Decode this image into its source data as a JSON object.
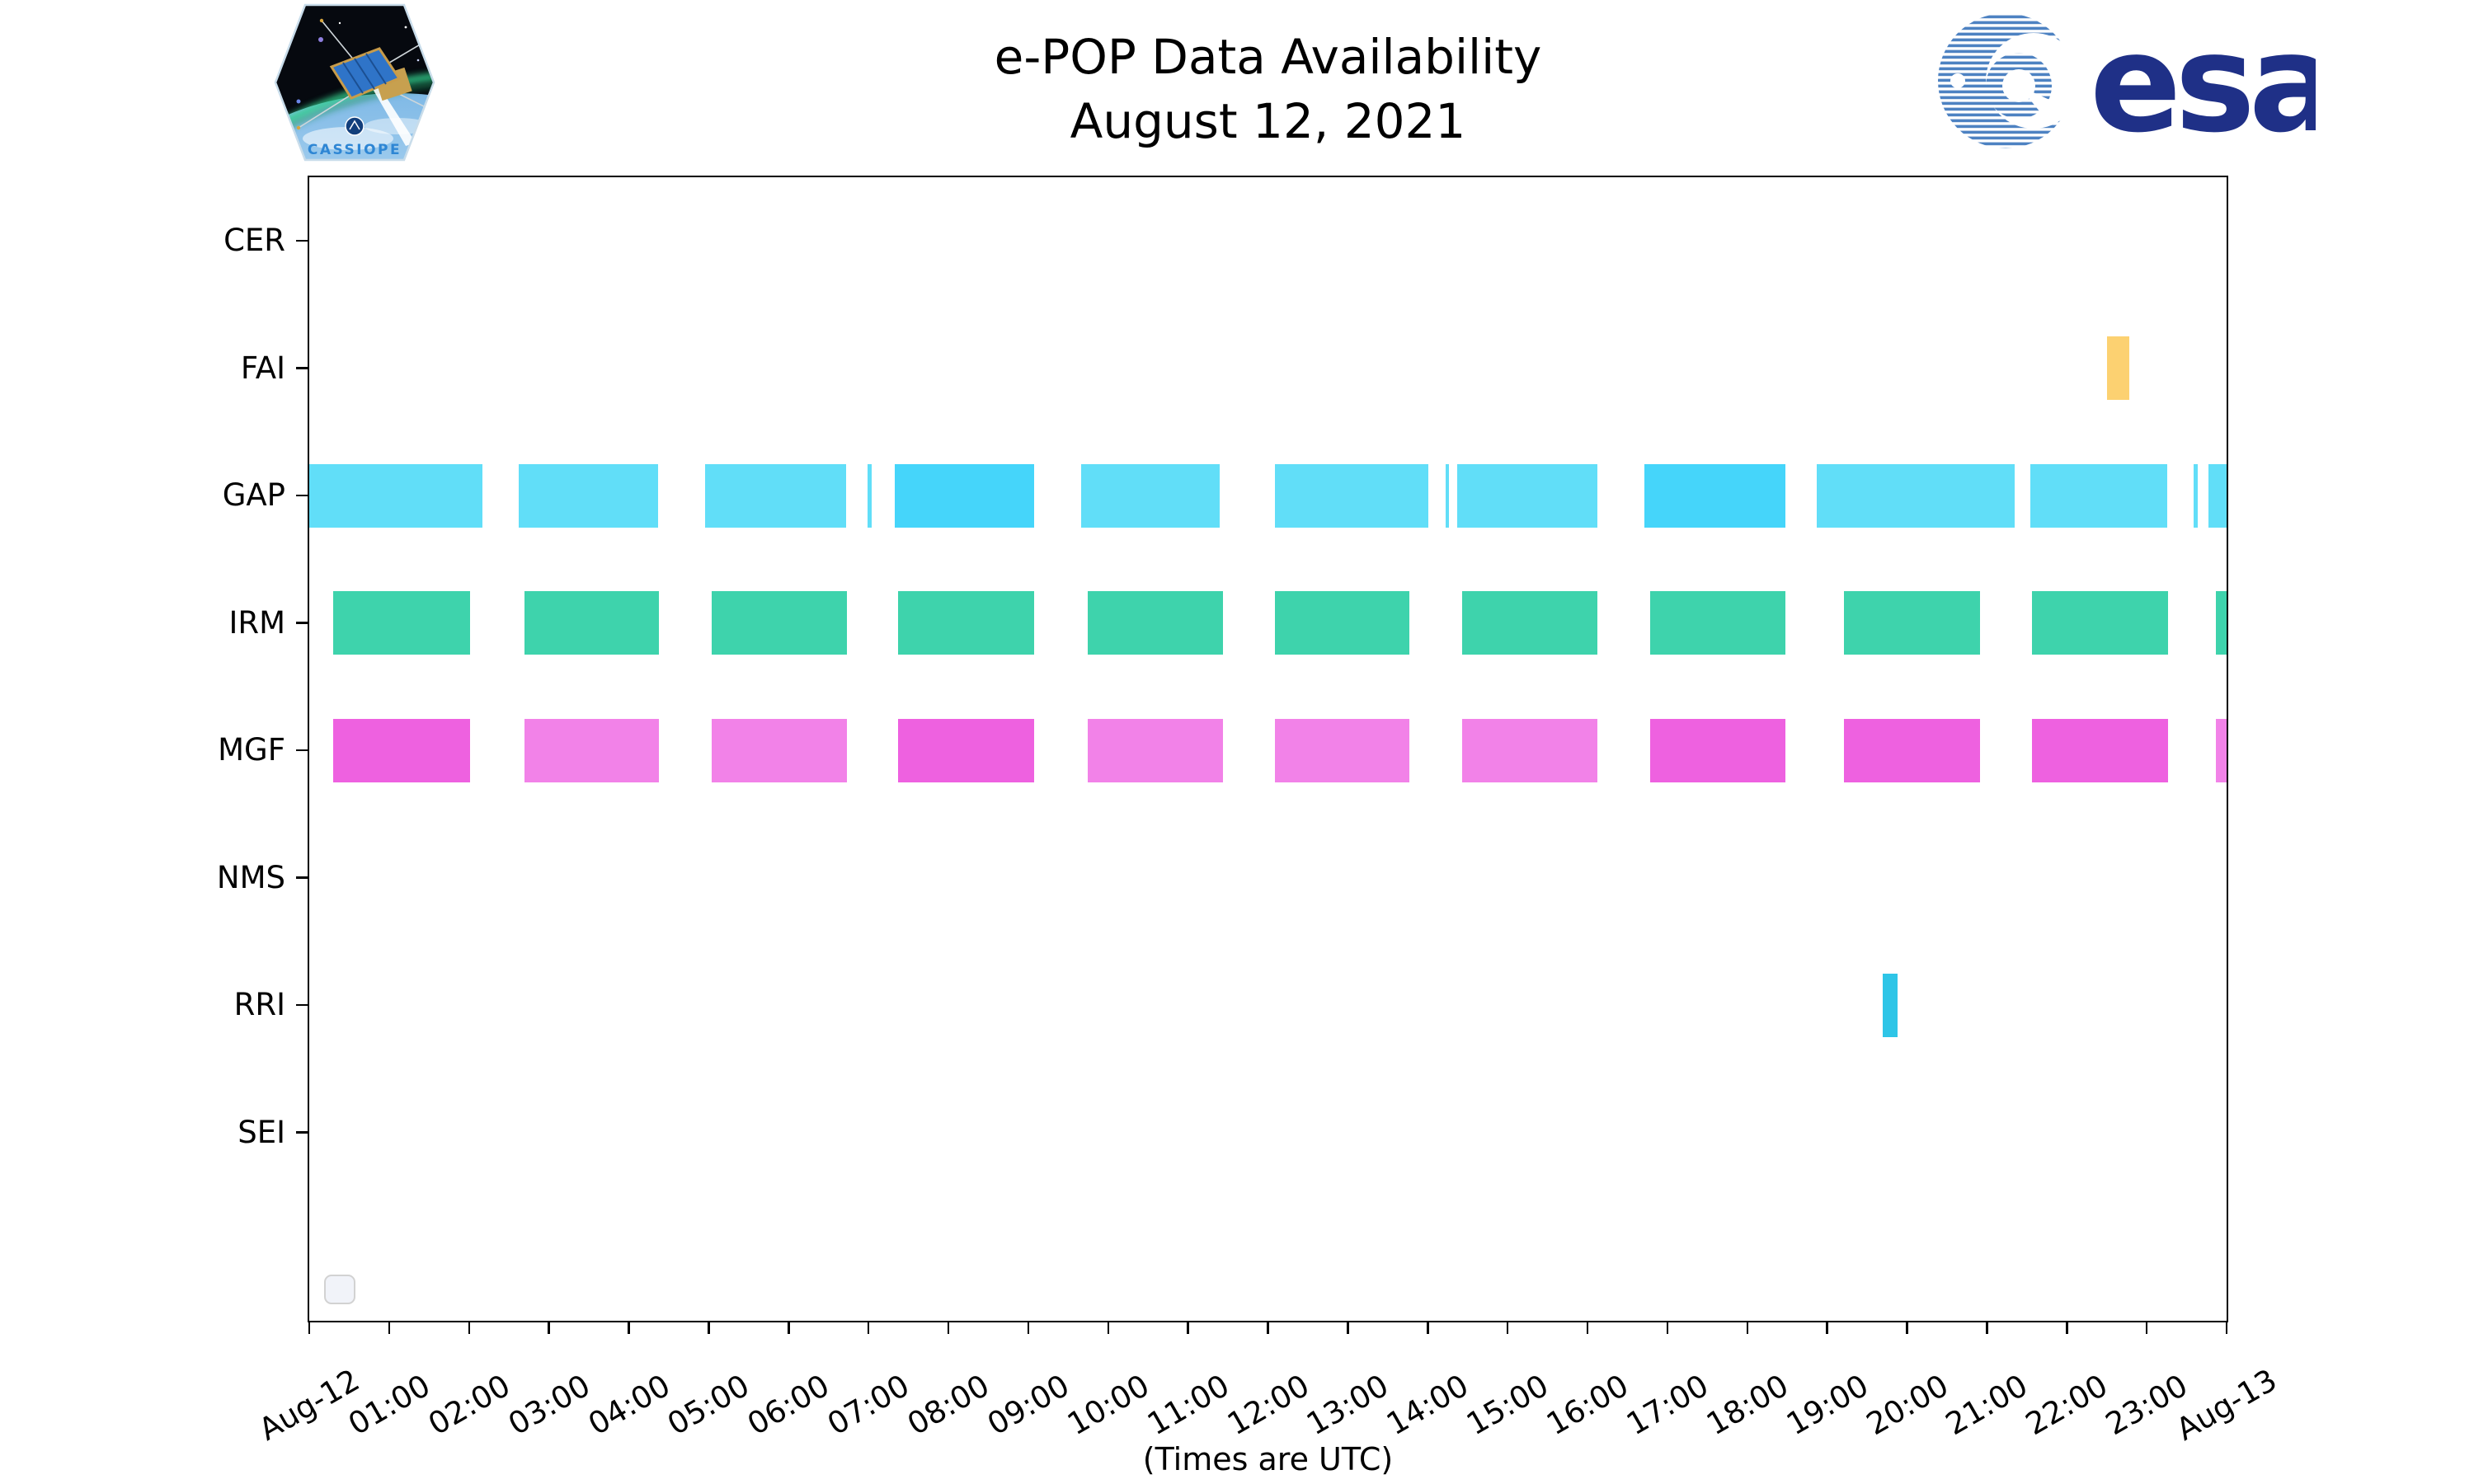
{
  "header": {
    "title_line1": "e-POP Data Availability",
    "title_line2": "August 12, 2021",
    "cassiope_label": "CASSIOPE",
    "esa_wordmark": "esa"
  },
  "footer": {
    "xlabel": "(Times are UTC)"
  },
  "colors": {
    "gap_light": "#61DEF8",
    "gap_dark": "#45D5FA",
    "irm": "#3ED3AC",
    "mgf_dark": "#EE61E0",
    "mgf_light": "#F282E8",
    "fai": "#FCD171",
    "rri": "#2EC5E7",
    "axis": "#000000",
    "esa_navy": "#1F3087",
    "esa_globe_blue": "#4D82C2",
    "cassiope_text_blue": "#2E86D4"
  },
  "chart_data": {
    "type": "gantt",
    "title": "e-POP Data Availability",
    "subtitle": "August 12, 2021",
    "xlabel": "(Times are UTC)",
    "x_axis": {
      "start_label": "Aug-12",
      "end_label": "Aug-13",
      "unit": "hours UTC",
      "range_hours": [
        0,
        24
      ],
      "tick_labels": [
        "Aug-12",
        "01:00",
        "02:00",
        "03:00",
        "04:00",
        "05:00",
        "06:00",
        "07:00",
        "08:00",
        "09:00",
        "10:00",
        "11:00",
        "12:00",
        "13:00",
        "14:00",
        "15:00",
        "16:00",
        "17:00",
        "18:00",
        "19:00",
        "20:00",
        "21:00",
        "22:00",
        "23:00",
        "Aug-13"
      ]
    },
    "rows": [
      {
        "label": "CER",
        "segments": []
      },
      {
        "label": "FAI",
        "segments": [
          {
            "start": 22.5,
            "end": 22.78,
            "color": "fai"
          }
        ]
      },
      {
        "label": "GAP",
        "segments": [
          {
            "start": 0.0,
            "end": 2.17,
            "color": "gap_light"
          },
          {
            "start": 2.62,
            "end": 4.37,
            "color": "gap_light"
          },
          {
            "start": 4.95,
            "end": 6.72,
            "color": "gap_light"
          },
          {
            "start": 6.99,
            "end": 7.04,
            "color": "gap_light"
          },
          {
            "start": 7.33,
            "end": 9.07,
            "color": "gap_dark"
          },
          {
            "start": 9.66,
            "end": 11.4,
            "color": "gap_light"
          },
          {
            "start": 12.09,
            "end": 14.01,
            "color": "gap_light"
          },
          {
            "start": 14.22,
            "end": 14.27,
            "color": "gap_light"
          },
          {
            "start": 14.37,
            "end": 16.12,
            "color": "gap_light"
          },
          {
            "start": 16.71,
            "end": 18.48,
            "color": "gap_dark"
          },
          {
            "start": 18.87,
            "end": 21.35,
            "color": "gap_light"
          },
          {
            "start": 21.54,
            "end": 23.26,
            "color": "gap_light"
          },
          {
            "start": 23.59,
            "end": 23.64,
            "color": "gap_light"
          },
          {
            "start": 23.77,
            "end": 24.0,
            "color": "gap_light"
          }
        ]
      },
      {
        "label": "IRM",
        "segments": [
          {
            "start": 0.3,
            "end": 2.01,
            "color": "irm"
          },
          {
            "start": 2.69,
            "end": 4.38,
            "color": "irm"
          },
          {
            "start": 5.04,
            "end": 6.73,
            "color": "irm"
          },
          {
            "start": 7.37,
            "end": 9.07,
            "color": "irm"
          },
          {
            "start": 9.74,
            "end": 11.44,
            "color": "irm"
          },
          {
            "start": 12.09,
            "end": 13.77,
            "color": "irm"
          },
          {
            "start": 14.43,
            "end": 16.12,
            "color": "irm"
          },
          {
            "start": 16.78,
            "end": 18.48,
            "color": "irm"
          },
          {
            "start": 19.21,
            "end": 20.91,
            "color": "irm"
          },
          {
            "start": 21.56,
            "end": 23.27,
            "color": "irm"
          },
          {
            "start": 23.87,
            "end": 24.0,
            "color": "irm"
          }
        ]
      },
      {
        "label": "MGF",
        "segments": [
          {
            "start": 0.3,
            "end": 2.01,
            "color": "mgf_dark"
          },
          {
            "start": 2.69,
            "end": 4.38,
            "color": "mgf_light"
          },
          {
            "start": 5.04,
            "end": 6.73,
            "color": "mgf_light"
          },
          {
            "start": 7.37,
            "end": 9.07,
            "color": "mgf_dark"
          },
          {
            "start": 9.74,
            "end": 11.44,
            "color": "mgf_light"
          },
          {
            "start": 12.09,
            "end": 13.77,
            "color": "mgf_light"
          },
          {
            "start": 14.43,
            "end": 16.12,
            "color": "mgf_light"
          },
          {
            "start": 16.78,
            "end": 18.48,
            "color": "mgf_dark"
          },
          {
            "start": 19.21,
            "end": 20.91,
            "color": "mgf_dark"
          },
          {
            "start": 21.56,
            "end": 23.27,
            "color": "mgf_dark"
          },
          {
            "start": 23.87,
            "end": 24.0,
            "color": "mgf_light"
          }
        ]
      },
      {
        "label": "NMS",
        "segments": []
      },
      {
        "label": "RRI",
        "segments": [
          {
            "start": 19.7,
            "end": 19.88,
            "color": "rri"
          }
        ]
      },
      {
        "label": "SEI",
        "segments": []
      }
    ],
    "legend": {
      "visible": true,
      "entries": []
    },
    "grid": false
  }
}
